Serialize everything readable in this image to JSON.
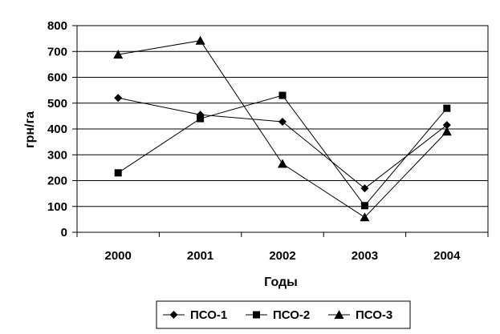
{
  "chart_data": {
    "type": "line",
    "categories": [
      "2000",
      "2001",
      "2002",
      "2003",
      "2004"
    ],
    "xlabel": "Годы",
    "ylabel": "грн/га",
    "ylim": [
      0,
      800
    ],
    "yticks": [
      0,
      100,
      200,
      300,
      400,
      500,
      600,
      700,
      800
    ],
    "grid": "horizontal",
    "legend_position": "bottom",
    "series": [
      {
        "name": "ПСО-1",
        "marker": "diamond",
        "color": "#000000",
        "values": [
          520,
          455,
          428,
          170,
          415
        ]
      },
      {
        "name": "ПСО-2",
        "marker": "square",
        "color": "#000000",
        "values": [
          230,
          440,
          530,
          103,
          480
        ]
      },
      {
        "name": "ПСО-3",
        "marker": "triangle",
        "color": "#000000",
        "values": [
          688,
          742,
          265,
          58,
          390
        ]
      }
    ]
  }
}
